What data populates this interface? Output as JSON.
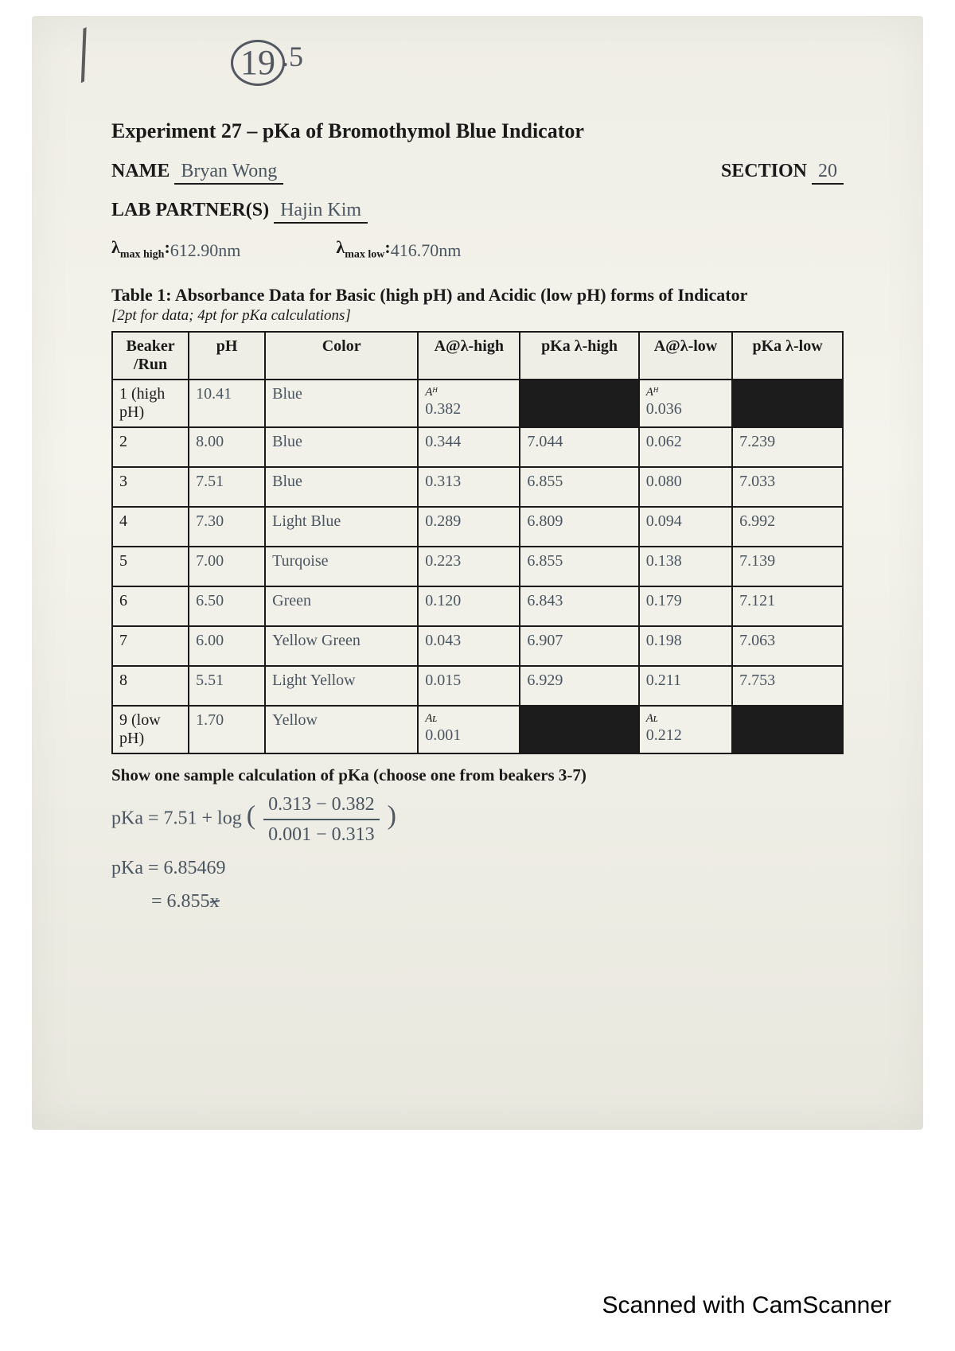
{
  "score": {
    "main": "19",
    "sup": ".5"
  },
  "title": "Experiment 27 – pKa of Bromothymol Blue Indicator",
  "fields": {
    "name_label": "NAME",
    "name_value": "Bryan Wong",
    "section_label": "SECTION",
    "section_value": "20",
    "partners_label": "LAB PARTNER(S)",
    "partners_value": "Hajin Kim",
    "lambda_high_label": "λmax high:",
    "lambda_high_value": "612.90nm",
    "lambda_low_label": "λmax low:",
    "lambda_low_value": "416.70nm"
  },
  "table": {
    "title": "Table 1: Absorbance Data for Basic (high pH) and Acidic (low pH) forms of Indicator",
    "subtitle": "[2pt for data; 4pt for pKa calculations]",
    "columns": [
      "Beaker /Run",
      "pH",
      "Color",
      "A@λ-high",
      "pKa λ-high",
      "A@λ-low",
      "pKa λ-low"
    ],
    "col_widths": [
      "90px",
      "90px",
      "180px",
      "120px",
      "140px",
      "110px",
      "130px"
    ],
    "rows": [
      {
        "run_print": "1 (high pH)",
        "ph": "10.41",
        "color": "Blue",
        "a_high_sub": "Aᴴ",
        "a_high": "0.382",
        "pka_high_black": true,
        "a_low_sub": "Aᴴ",
        "a_low": "0.036",
        "pka_low_black": true
      },
      {
        "run_print": "2",
        "ph": "8.00",
        "color": "Blue",
        "a_high": "0.344",
        "pka_high": "7.044",
        "a_low": "0.062",
        "pka_low": "7.239"
      },
      {
        "run_print": "3",
        "ph": "7.51",
        "color": "Blue",
        "a_high": "0.313",
        "pka_high": "6.855",
        "a_low": "0.080",
        "pka_low": "7.033"
      },
      {
        "run_print": "4",
        "ph": "7.30",
        "color": "Light Blue",
        "a_high": "0.289",
        "pka_high": "6.809",
        "a_low": "0.094",
        "pka_low": "6.992"
      },
      {
        "run_print": "5",
        "ph": "7.00",
        "color": "Turqoise",
        "a_high": "0.223",
        "pka_high": "6.855",
        "a_low": "0.138",
        "pka_low": "7.139"
      },
      {
        "run_print": "6",
        "ph": "6.50",
        "color": "Green",
        "a_high": "0.120",
        "pka_high": "6.843",
        "a_low": "0.179",
        "pka_low": "7.121"
      },
      {
        "run_print": "7",
        "ph": "6.00",
        "color": "Yellow Green",
        "a_high": "0.043",
        "pka_high": "6.907",
        "a_low": "0.198",
        "pka_low": "7.063"
      },
      {
        "run_print": "8",
        "ph": "5.51",
        "color": "Light Yellow",
        "a_high": "0.015",
        "pka_high": "6.929",
        "a_low": "0.211",
        "pka_low": "7.753"
      },
      {
        "run_print": "9 (low pH)",
        "ph": "1.70",
        "color": "Yellow",
        "a_high_sub": "Aʟ",
        "a_high": "0.001",
        "pka_high_black": true,
        "a_low_sub": "Aʟ",
        "a_low": "0.212",
        "pka_low_black": true
      }
    ]
  },
  "calc": {
    "heading": "Show one sample calculation of pKa (choose one from beakers 3-7)",
    "line1_pre": "pKa = 7.51 + log",
    "frac_num": "0.313 − 0.382",
    "frac_den": "0.001 − 0.313",
    "line2": "pKa = 6.85469",
    "line3_pre": "= 6.855",
    "line3_strike": "x"
  },
  "footer": "Scanned with CamScanner",
  "colors": {
    "paper_bg": "#efeee6",
    "ink_print": "#1a1a1a",
    "ink_hand": "#4a5560",
    "black_cell": "#1c1c1c"
  }
}
